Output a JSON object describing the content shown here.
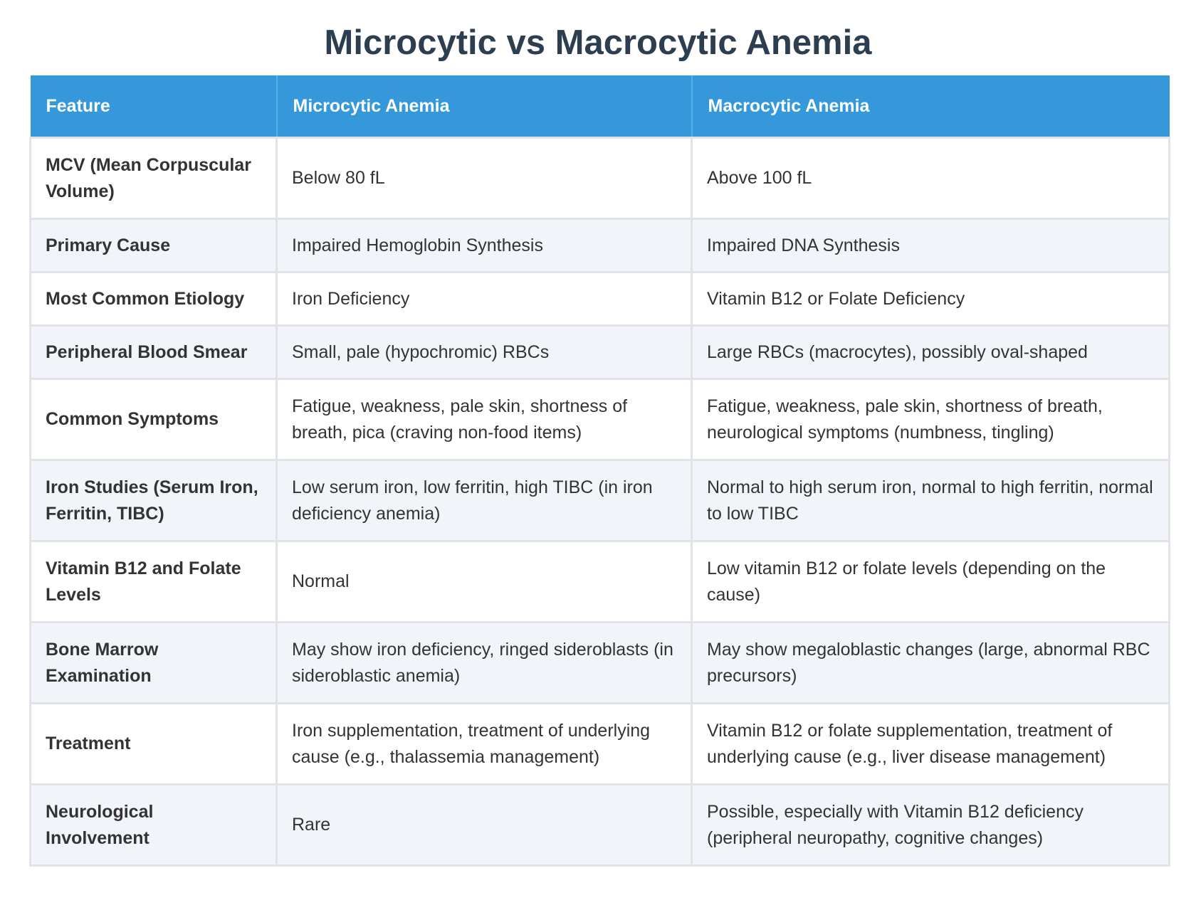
{
  "title": "Microcytic vs Macrocytic Anemia",
  "headers": [
    "Feature",
    "Microcytic Anemia",
    "Macrocytic Anemia"
  ],
  "rows": [
    {
      "feature": "MCV (Mean Corpuscular Volume)",
      "microcytic": "Below 80 fL",
      "macrocytic": "Above 100 fL"
    },
    {
      "feature": "Primary Cause",
      "microcytic": "Impaired Hemoglobin Synthesis",
      "macrocytic": "Impaired DNA Synthesis"
    },
    {
      "feature": "Most Common Etiology",
      "microcytic": "Iron Deficiency",
      "macrocytic": "Vitamin B12 or Folate Deficiency"
    },
    {
      "feature": "Peripheral Blood Smear",
      "microcytic": "Small, pale (hypochromic) RBCs",
      "macrocytic": "Large RBCs (macrocytes), possibly oval-shaped"
    },
    {
      "feature": "Common Symptoms",
      "microcytic": "Fatigue, weakness, pale skin, shortness of breath, pica (craving non-food items)",
      "macrocytic": "Fatigue, weakness, pale skin, shortness of breath, neurological symptoms (numbness, tingling)"
    },
    {
      "feature": "Iron Studies (Serum Iron, Ferritin, TIBC)",
      "microcytic": "Low serum iron, low ferritin, high TIBC (in iron deficiency anemia)",
      "macrocytic": "Normal to high serum iron, normal to high ferritin, normal to low TIBC"
    },
    {
      "feature": "Vitamin B12 and Folate Levels",
      "microcytic": "Normal",
      "macrocytic": "Low vitamin B12 or folate levels (depending on the cause)"
    },
    {
      "feature": "Bone Marrow Examination",
      "microcytic": "May show iron deficiency, ringed sideroblasts (in sideroblastic anemia)",
      "macrocytic": "May show megaloblastic changes (large, abnormal RBC precursors)"
    },
    {
      "feature": "Treatment",
      "microcytic": "Iron supplementation, treatment of underlying cause (e.g., thalassemia management)",
      "macrocytic": "Vitamin B12 or folate supplementation, treatment of underlying cause (e.g., liver disease management)"
    },
    {
      "feature": "Neurological Involvement",
      "microcytic": "Rare",
      "macrocytic": "Possible, especially with Vitamin B12 deficiency (peripheral neuropathy, cognitive changes)"
    }
  ]
}
